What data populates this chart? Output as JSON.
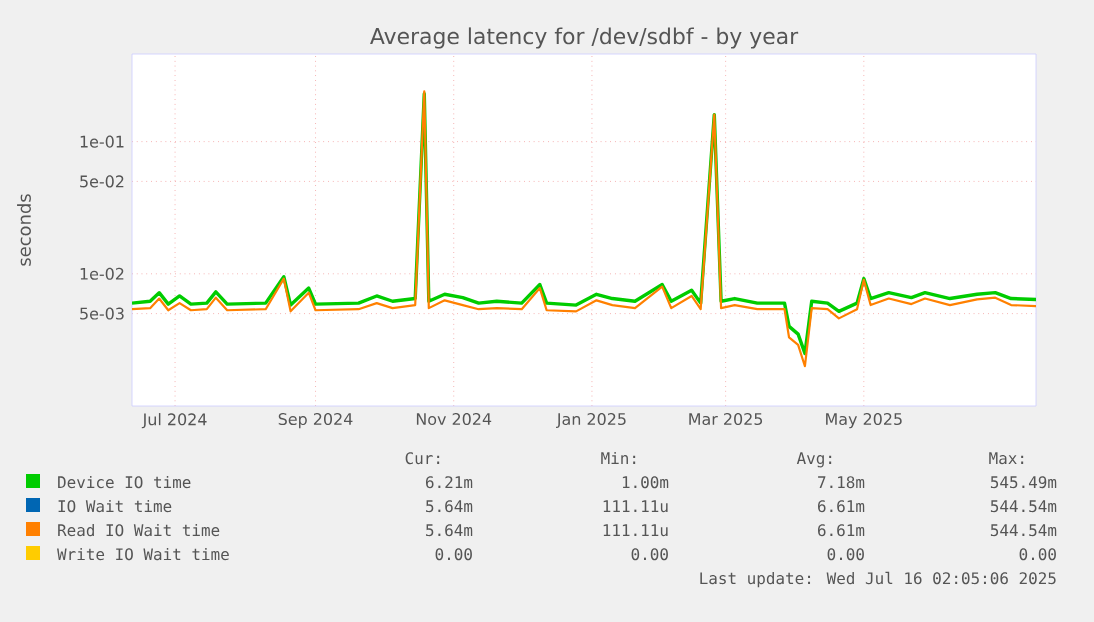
{
  "chart_data": {
    "type": "line",
    "title": "Average latency for /dev/sdbf - by year",
    "ylabel": "seconds",
    "log": "y",
    "grid": true,
    "legend": "bottom",
    "xlim": [
      "2024-06-12",
      "2025-07-16"
    ],
    "ylim": [
      0.001,
      0.46
    ],
    "xticks": [
      {
        "value": "2024-07-01",
        "label": "Jul 2024"
      },
      {
        "value": "2024-09-01",
        "label": "Sep 2024"
      },
      {
        "value": "2024-11-01",
        "label": "Nov 2024"
      },
      {
        "value": "2025-01-01",
        "label": "Jan 2025"
      },
      {
        "value": "2025-03-01",
        "label": "Mar 2025"
      },
      {
        "value": "2025-05-01",
        "label": "May 2025"
      }
    ],
    "yticks": [
      {
        "value": 0.005,
        "label": "5e-03"
      },
      {
        "value": 0.01,
        "label": "1e-02"
      },
      {
        "value": 0.05,
        "label": "5e-02"
      },
      {
        "value": 0.1,
        "label": "1e-01"
      }
    ],
    "x": [
      "2024-06-12",
      "2024-06-20",
      "2024-06-24",
      "2024-06-28",
      "2024-07-03",
      "2024-07-08",
      "2024-07-15",
      "2024-07-19",
      "2024-07-24",
      "2024-08-10",
      "2024-08-18",
      "2024-08-21",
      "2024-08-29",
      "2024-09-01",
      "2024-09-20",
      "2024-09-28",
      "2024-10-05",
      "2024-10-15",
      "2024-10-19",
      "2024-10-21",
      "2024-10-28",
      "2024-11-05",
      "2024-11-12",
      "2024-11-20",
      "2024-12-01",
      "2024-12-09",
      "2024-12-12",
      "2024-12-25",
      "2025-01-03",
      "2025-01-10",
      "2025-01-20",
      "2025-02-01",
      "2025-02-05",
      "2025-02-14",
      "2025-02-18",
      "2025-02-24",
      "2025-02-27",
      "2025-03-05",
      "2025-03-15",
      "2025-03-27",
      "2025-03-29",
      "2025-04-02",
      "2025-04-05",
      "2025-04-08",
      "2025-04-15",
      "2025-04-20",
      "2025-04-28",
      "2025-05-01",
      "2025-05-04",
      "2025-05-12",
      "2025-05-22",
      "2025-05-28",
      "2025-06-08",
      "2025-06-20",
      "2025-06-28",
      "2025-07-05",
      "2025-07-16"
    ],
    "series": [
      {
        "name": "Device IO time",
        "color": "#00cc00",
        "values": [
          0.006,
          0.0062,
          0.0072,
          0.0059,
          0.0068,
          0.0059,
          0.006,
          0.0073,
          0.0059,
          0.006,
          0.0095,
          0.0058,
          0.0078,
          0.0059,
          0.006,
          0.0068,
          0.0062,
          0.0065,
          0.23,
          0.0062,
          0.007,
          0.0066,
          0.006,
          0.0062,
          0.006,
          0.0083,
          0.006,
          0.0058,
          0.007,
          0.0065,
          0.0062,
          0.0083,
          0.0062,
          0.0075,
          0.006,
          0.16,
          0.0062,
          0.0065,
          0.006,
          0.006,
          0.004,
          0.0035,
          0.0025,
          0.0062,
          0.006,
          0.0052,
          0.006,
          0.0092,
          0.0065,
          0.0072,
          0.0066,
          0.0072,
          0.0065,
          0.007,
          0.0072,
          0.0065,
          0.0064
        ]
      },
      {
        "name": "IO Wait time",
        "color": "#0066b3",
        "values": [
          null,
          null,
          null,
          null,
          null,
          null,
          null,
          null,
          null,
          null,
          null,
          null,
          null,
          null,
          null,
          null,
          null,
          null,
          null,
          null,
          null,
          null,
          null,
          null,
          null,
          null,
          null,
          null,
          null,
          null,
          null,
          null,
          null,
          null,
          null,
          null,
          null,
          null,
          null,
          null,
          null,
          null,
          null,
          null,
          null,
          null,
          null,
          null,
          null,
          null,
          null,
          null,
          null,
          null,
          null,
          null,
          null
        ]
      },
      {
        "name": "Read IO Wait time",
        "color": "#ff8000",
        "values": [
          0.0054,
          0.0055,
          0.0065,
          0.0053,
          0.006,
          0.0053,
          0.0054,
          0.0066,
          0.0053,
          0.0054,
          0.0092,
          0.0052,
          0.0072,
          0.0053,
          0.0054,
          0.006,
          0.0055,
          0.0058,
          0.24,
          0.0055,
          0.0063,
          0.0058,
          0.0054,
          0.0055,
          0.0054,
          0.0078,
          0.0053,
          0.0052,
          0.0063,
          0.0058,
          0.0055,
          0.008,
          0.0055,
          0.0068,
          0.0054,
          0.16,
          0.0055,
          0.0058,
          0.0054,
          0.0054,
          0.0033,
          0.0029,
          0.002,
          0.0055,
          0.0054,
          0.0046,
          0.0054,
          0.009,
          0.0058,
          0.0065,
          0.0059,
          0.0065,
          0.0058,
          0.0064,
          0.0066,
          0.0058,
          0.0057
        ]
      },
      {
        "name": "Write IO Wait time",
        "color": "#ffcc00",
        "values": [
          null,
          null,
          null,
          null,
          null,
          null,
          null,
          null,
          null,
          null,
          null,
          null,
          null,
          null,
          null,
          null,
          null,
          null,
          null,
          null,
          null,
          null,
          null,
          null,
          null,
          null,
          null,
          null,
          null,
          null,
          null,
          null,
          null,
          null,
          null,
          null,
          null,
          null,
          null,
          null,
          null,
          null,
          null,
          null,
          null,
          null,
          null,
          null,
          null,
          null,
          null,
          null,
          null,
          null,
          null,
          null,
          null
        ]
      }
    ],
    "annotations": [
      "Cur:",
      "Min:",
      "Avg:",
      "Max:",
      "6.21m",
      "1.00m",
      "7.18m",
      "545.49m",
      "5.64m",
      "111.11u",
      "6.61m",
      "544.54m",
      "5.64m",
      "111.11u",
      "6.61m",
      "544.54m",
      "0.00",
      "0.00",
      "0.00",
      "0.00",
      "Last update: Wed Jul 16 02:05:06 2025"
    ]
  }
}
